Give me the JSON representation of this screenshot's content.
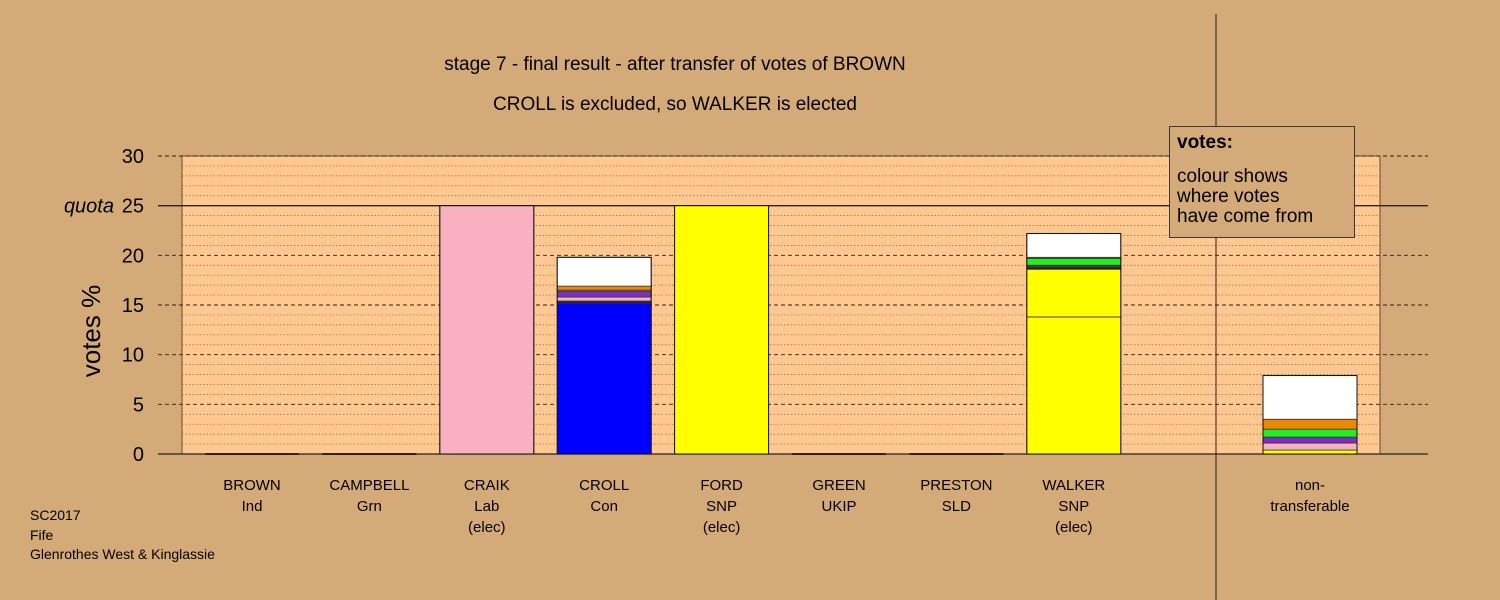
{
  "title": {
    "line1": "stage 7 - final result - after transfer of votes of BROWN",
    "line2": "CROLL is excluded, so WALKER is elected"
  },
  "legend": {
    "title": "votes:",
    "line1": "colour shows",
    "line2": "where votes",
    "line3": "have come from"
  },
  "footer": {
    "line1": "SC2017",
    "line2": "Fife",
    "line3": "Glenrothes West & Kinglassie"
  },
  "colors": {
    "background": "#d4aa78",
    "plot_area": "#ffc890",
    "Lab": "#f9b0c0",
    "Con": "#0000ff",
    "SNP": "#ffff00",
    "UKIP": "#7b2fbe",
    "Grn": "#22ee22",
    "Ind": "#ee8800",
    "SLD": "#ff9933",
    "nontransferable": "#ffffff"
  },
  "chart_data": {
    "type": "bar",
    "stacked": true,
    "ylabel": "votes %",
    "ylim": [
      0,
      30
    ],
    "yticks": [
      0,
      5,
      10,
      15,
      20,
      25,
      30
    ],
    "quota": 25,
    "quota_label": "quota",
    "grid": true,
    "legend_position": "top-right",
    "categories": [
      {
        "lines": [
          "BROWN",
          "Ind"
        ]
      },
      {
        "lines": [
          "CAMPBELL",
          "Grn"
        ]
      },
      {
        "lines": [
          "CRAIK",
          "Lab",
          "(elec)"
        ]
      },
      {
        "lines": [
          "CROLL",
          "Con"
        ]
      },
      {
        "lines": [
          "FORD",
          "SNP",
          "(elec)"
        ]
      },
      {
        "lines": [
          "GREEN",
          "UKIP"
        ]
      },
      {
        "lines": [
          "PRESTON",
          "SLD"
        ]
      },
      {
        "lines": [
          "WALKER",
          "SNP",
          "(elec)"
        ]
      },
      {
        "lines": [
          "non-",
          "transferable"
        ]
      }
    ],
    "bars": [
      [],
      [],
      [
        {
          "color": "#f9b0c0",
          "value": 25.0
        }
      ],
      [
        {
          "color": "#0000ff",
          "value": 15.2
        },
        {
          "color": "#222222",
          "value": 0.2
        },
        {
          "color": "#f9b0c0",
          "value": 0.4
        },
        {
          "color": "#7b2fbe",
          "value": 0.6
        },
        {
          "color": "#ffff00",
          "value": 0.1
        },
        {
          "color": "#ee8800",
          "value": 0.4
        },
        {
          "color": "#ffffff",
          "value": 2.9
        }
      ],
      [
        {
          "color": "#ffff00",
          "value": 25.0
        }
      ],
      [],
      [],
      [
        {
          "color": "#ffff00",
          "value": 13.8
        },
        {
          "color": "#ffff00",
          "value": 4.8
        },
        {
          "color": "#222222",
          "value": 0.2
        },
        {
          "color": "#f9b0c0",
          "value": 0.1
        },
        {
          "color": "#7b2fbe",
          "value": 0.1
        },
        {
          "color": "#22ee22",
          "value": 0.7
        },
        {
          "color": "#ee8800",
          "value": 0.1
        },
        {
          "color": "#ffffff",
          "value": 2.4
        }
      ],
      [
        {
          "color": "#ffff00",
          "value": 0.4
        },
        {
          "color": "#f9b0c0",
          "value": 0.7
        },
        {
          "color": "#7b2fbe",
          "value": 0.6
        },
        {
          "color": "#22ee22",
          "value": 0.8
        },
        {
          "color": "#ee8800",
          "value": 1.0
        },
        {
          "color": "#ffffff",
          "value": 4.4
        }
      ]
    ]
  }
}
